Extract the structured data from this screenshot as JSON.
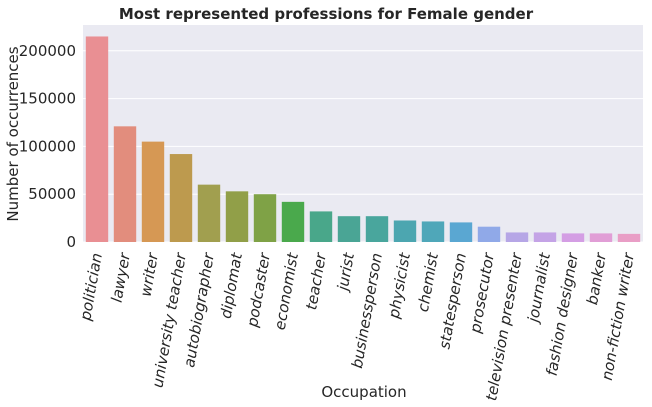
{
  "chart_data": {
    "type": "bar",
    "title": "Most represented professions for Female gender",
    "xlabel": "Occupation",
    "ylabel": "Number of occurrences",
    "ylim": [
      0,
      227000
    ],
    "yticks": [
      0,
      50000,
      100000,
      150000,
      200000
    ],
    "ytick_labels": [
      "0",
      "50000",
      "100000",
      "150000",
      "200000"
    ],
    "grid": true,
    "background": "#eaeaf2",
    "categories": [
      "politician",
      "lawyer",
      "writer",
      "university teacher",
      "autobiographer",
      "diplomat",
      "podcaster",
      "economist",
      "teacher",
      "jurist",
      "businessperson",
      "physicist",
      "chemist",
      "statesperson",
      "prosecutor",
      "television presenter",
      "journalist",
      "fashion designer",
      "banker",
      "non-fiction writer"
    ],
    "values": [
      215000,
      121000,
      105000,
      92000,
      60000,
      53000,
      50000,
      42000,
      32000,
      27000,
      27000,
      22500,
      21500,
      20500,
      16000,
      10000,
      10000,
      9000,
      9000,
      8500
    ],
    "colors": [
      "#e98f93",
      "#e28d7d",
      "#d69854",
      "#bd9a4e",
      "#a19f4f",
      "#919f48",
      "#7fa246",
      "#4aa94c",
      "#49a78a",
      "#4aa595",
      "#49a69d",
      "#4ca6b0",
      "#4fa7b9",
      "#5aa7d2",
      "#90a9e8",
      "#b6a6e6",
      "#c4a3e6",
      "#d49ee4",
      "#e19ed6",
      "#e99ec6"
    ]
  }
}
